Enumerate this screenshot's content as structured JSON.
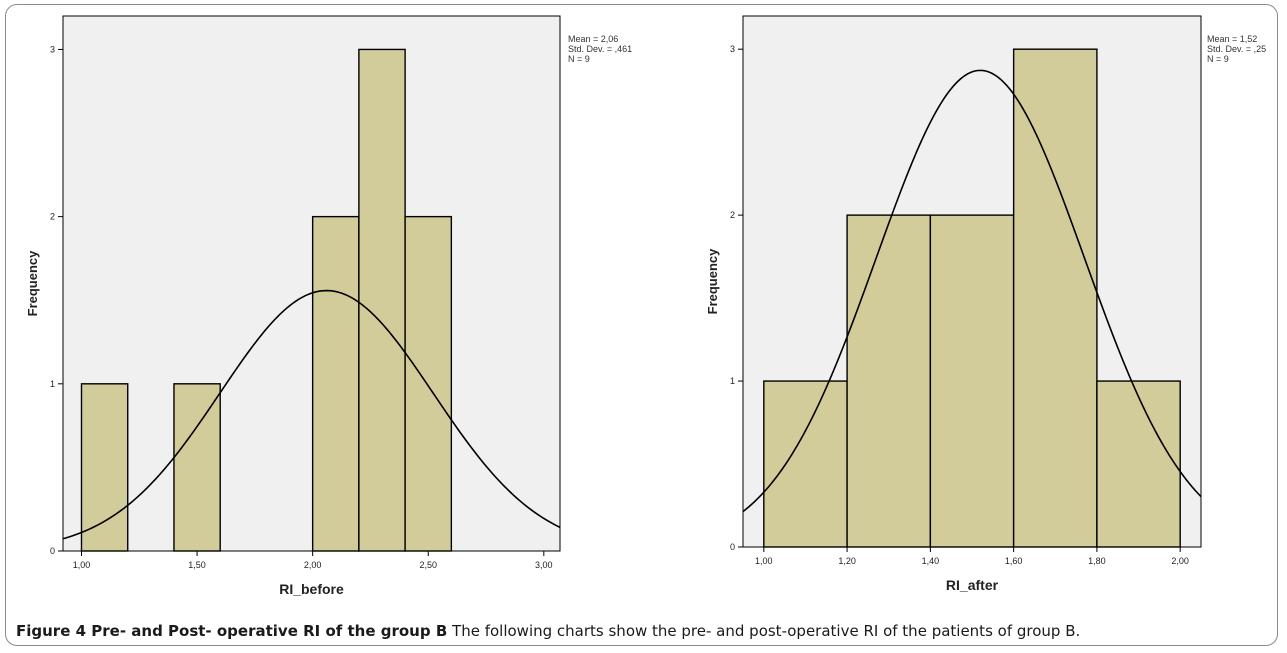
{
  "figure": {
    "caption_bold": "Figure 4 Pre- and Post- operative RI of the group B",
    "caption_text": "The following charts show the pre- and post-operative RI of the patients of group B."
  },
  "colors": {
    "plot_bg": "#f0f0f0",
    "bar_fill": "#d2cc9b",
    "bar_stroke": "#000000",
    "curve": "#000000"
  },
  "chart_data": [
    {
      "type": "bar",
      "subtype": "histogram",
      "xlabel": "RI_before",
      "ylabel": "Frequency",
      "xlim": [
        0.92,
        3.07
      ],
      "ylim": [
        0,
        3.2
      ],
      "xticks": [
        1.0,
        1.5,
        2.0,
        2.5,
        3.0
      ],
      "xtick_labels": [
        "1,00",
        "1,50",
        "2,00",
        "2,50",
        "3,00"
      ],
      "yticks": [
        0,
        1,
        2,
        3
      ],
      "ytick_labels": [
        "0",
        "1",
        "2",
        "3"
      ],
      "bins": [
        {
          "start": 1.0,
          "end": 1.2,
          "count": 1
        },
        {
          "start": 1.4,
          "end": 1.6,
          "count": 1
        },
        {
          "start": 2.0,
          "end": 2.2,
          "count": 2
        },
        {
          "start": 2.2,
          "end": 2.4,
          "count": 3
        },
        {
          "start": 2.4,
          "end": 2.6,
          "count": 2
        }
      ],
      "normal_curve": {
        "mean": 2.06,
        "sd": 0.461,
        "n": 9,
        "bin_width": 0.2
      },
      "stats": {
        "mean": "Mean = 2,06",
        "sd": "Std. Dev. = ,461",
        "n": "N = 9"
      },
      "grid": false
    },
    {
      "type": "bar",
      "subtype": "histogram",
      "xlabel": "RI_after",
      "ylabel": "Frequency",
      "xlim": [
        0.95,
        2.05
      ],
      "ylim": [
        0,
        3.2
      ],
      "xticks": [
        1.0,
        1.2,
        1.4,
        1.6,
        1.8,
        2.0
      ],
      "xtick_labels": [
        "1,00",
        "1,20",
        "1,40",
        "1,60",
        "1,80",
        "2,00"
      ],
      "yticks": [
        0,
        1,
        2,
        3
      ],
      "ytick_labels": [
        "0",
        "1",
        "2",
        "3"
      ],
      "bins": [
        {
          "start": 1.0,
          "end": 1.2,
          "count": 1
        },
        {
          "start": 1.2,
          "end": 1.4,
          "count": 2
        },
        {
          "start": 1.4,
          "end": 1.6,
          "count": 2
        },
        {
          "start": 1.6,
          "end": 1.8,
          "count": 3
        },
        {
          "start": 1.8,
          "end": 2.0,
          "count": 1
        }
      ],
      "normal_curve": {
        "mean": 1.52,
        "sd": 0.25,
        "n": 9,
        "bin_width": 0.2
      },
      "stats": {
        "mean": "Mean = 1,52",
        "sd": "Std. Dev. = ,25",
        "n": "N = 9"
      },
      "grid": false
    }
  ]
}
